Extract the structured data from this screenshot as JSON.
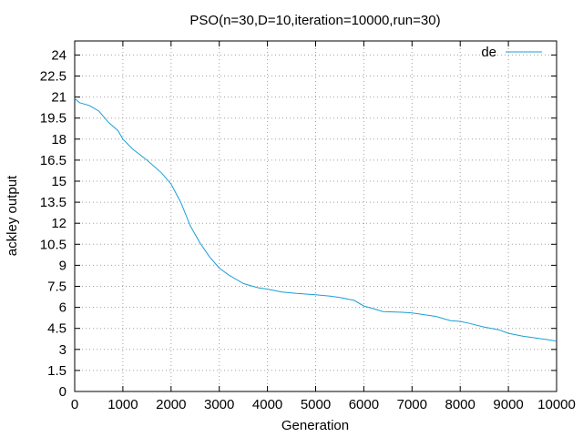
{
  "chart_data": {
    "type": "line",
    "title": "PSO(n=30,D=10,iteration=10000,run=30)",
    "xlabel": "Generation",
    "ylabel": "ackley output",
    "xlim": [
      0,
      10000
    ],
    "ylim": [
      0,
      25
    ],
    "x_ticks": [
      "0",
      "1000",
      "2000",
      "3000",
      "4000",
      "5000",
      "6000",
      "7000",
      "8000",
      "9000",
      "10000"
    ],
    "y_ticks": [
      "0",
      "1.5",
      "3",
      "4.5",
      "6",
      "7.5",
      "9",
      "10.5",
      "12",
      "13.5",
      "15",
      "16.5",
      "18",
      "19.5",
      "21",
      "22.5",
      "24"
    ],
    "grid": true,
    "legend_position": "top-right",
    "series": [
      {
        "name": "de",
        "color": "#1a9fd6",
        "x": [
          0,
          100,
          300,
          500,
          700,
          900,
          1000,
          1200,
          1500,
          1800,
          2000,
          2200,
          2400,
          2600,
          2800,
          3000,
          3200,
          3500,
          3800,
          4000,
          4300,
          4600,
          5000,
          5300,
          5500,
          5800,
          6000,
          6200,
          6400,
          6800,
          7000,
          7200,
          7500,
          7800,
          8000,
          8200,
          8500,
          8800,
          9000,
          9300,
          9600,
          9800,
          10000
        ],
        "y": [
          20.9,
          20.6,
          20.4,
          20.0,
          19.2,
          18.6,
          18.0,
          17.3,
          16.5,
          15.6,
          14.8,
          13.5,
          11.8,
          10.6,
          9.6,
          8.8,
          8.3,
          7.7,
          7.4,
          7.3,
          7.1,
          7.0,
          6.9,
          6.8,
          6.7,
          6.5,
          6.1,
          5.9,
          5.7,
          5.65,
          5.6,
          5.5,
          5.35,
          5.05,
          5.0,
          4.85,
          4.6,
          4.4,
          4.15,
          3.95,
          3.8,
          3.7,
          3.6
        ]
      }
    ]
  }
}
